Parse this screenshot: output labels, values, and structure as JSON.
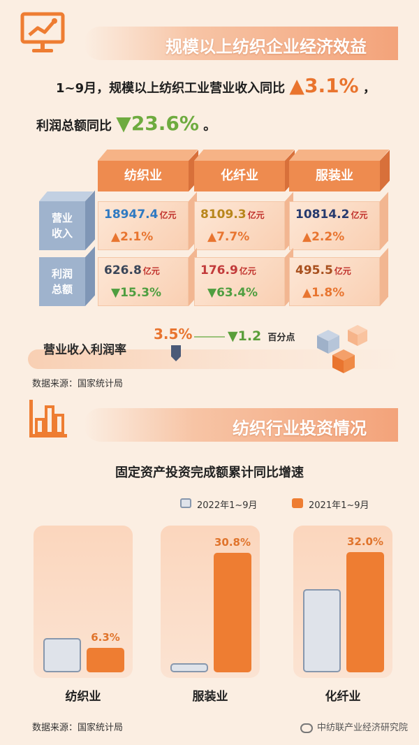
{
  "section1": {
    "title": "规模以上纺织企业经济效益",
    "summary_line1_prefix": "1~9月，规模以上纺织工业营业收入同比",
    "summary_line1_value": "▲3.1%",
    "summary_line1_suffix": "，",
    "summary_line2_prefix": "利润总额同比",
    "summary_line2_value": "▼23.6%",
    "summary_line2_suffix": "。",
    "columns": [
      "纺织业",
      "化纤业",
      "服装业"
    ],
    "rows": [
      {
        "label_line1": "营业",
        "label_line2": "收入",
        "cells": [
          {
            "value": "18947.4",
            "unit": "亿元",
            "change": "▲2.1%",
            "dir": "up",
            "color": "#2f7ac2"
          },
          {
            "value": "8109.3",
            "unit": "亿元",
            "change": "▲7.7%",
            "dir": "up",
            "color": "#b8861b"
          },
          {
            "value": "10814.2",
            "unit": "亿元",
            "change": "▲2.2%",
            "dir": "up",
            "color": "#263a6e"
          }
        ]
      },
      {
        "label_line1": "利润",
        "label_line2": "总额",
        "cells": [
          {
            "value": "626.8",
            "unit": "亿元",
            "change": "▼15.3%",
            "dir": "down",
            "color": "#3a4558"
          },
          {
            "value": "176.9",
            "unit": "亿元",
            "change": "▼63.4%",
            "dir": "down",
            "color": "#c23a3a"
          },
          {
            "value": "495.5",
            "unit": "亿元",
            "change": "▲1.8%",
            "dir": "up",
            "color": "#a8501e"
          }
        ]
      }
    ],
    "margin_label": "营业收入利润率",
    "margin_value": "3.5%",
    "margin_change": "▼1.2",
    "margin_change_unit": "百分点",
    "source": "数据来源：国家统计局"
  },
  "section2": {
    "title": "纺织行业投资情况",
    "source": "数据来源：国家统计局",
    "watermark": "中纺联产业经济研究院"
  },
  "chart_data": {
    "type": "bar",
    "title": "固定资产投资完成额累计同比增速",
    "categories": [
      "纺织业",
      "服装业",
      "化纤业"
    ],
    "series": [
      {
        "name": "2022年1~9月",
        "values": [
          8.8,
          2.3,
          21.5
        ],
        "labels": [
          "",
          "",
          ""
        ],
        "color": "#dfe3ea"
      },
      {
        "name": "2021年1~9月",
        "values": [
          6.3,
          30.8,
          32.0
        ],
        "labels": [
          "6.3%",
          "30.8%",
          "32.0%"
        ],
        "color": "#ee7d32"
      }
    ],
    "ylim": [
      0,
      40
    ],
    "legend": "top-right",
    "grid": false
  }
}
